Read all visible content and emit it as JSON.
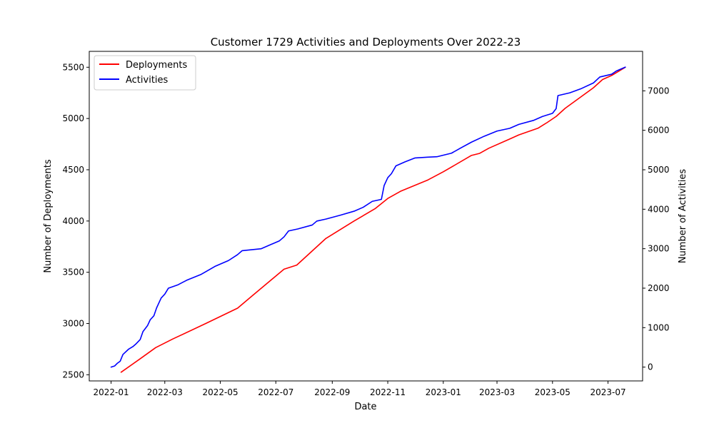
{
  "chart_data": {
    "type": "line",
    "title": "Customer 1729 Activities and Deployments Over 2022-23",
    "xlabel": "Date",
    "ylabel": "Number of Deployments",
    "y2label": "Number of Activities",
    "xlim": [
      "2021-12-08",
      "2023-08-08"
    ],
    "ylim": [
      2440,
      5655
    ],
    "y2lim": [
      -350,
      8000
    ],
    "x_ticks": [
      {
        "date": "2022-01-01",
        "label": "2022-01"
      },
      {
        "date": "2022-03-01",
        "label": "2022-03"
      },
      {
        "date": "2022-05-01",
        "label": "2022-05"
      },
      {
        "date": "2022-07-01",
        "label": "2022-07"
      },
      {
        "date": "2022-09-01",
        "label": "2022-09"
      },
      {
        "date": "2022-11-01",
        "label": "2022-11"
      },
      {
        "date": "2023-01-01",
        "label": "2023-01"
      },
      {
        "date": "2023-03-01",
        "label": "2023-03"
      },
      {
        "date": "2023-05-01",
        "label": "2023-05"
      },
      {
        "date": "2023-07-01",
        "label": "2023-07"
      }
    ],
    "y_ticks": [
      2500,
      3000,
      3500,
      4000,
      4500,
      5000,
      5500
    ],
    "y2_ticks": [
      0,
      1000,
      2000,
      3000,
      4000,
      5000,
      6000,
      7000
    ],
    "grid": false,
    "legend_position": "top-left",
    "series": [
      {
        "name": "Deployments",
        "axis": "left",
        "color": "#ff0000",
        "points": [
          [
            "2022-01-12",
            2525
          ],
          [
            "2022-02-01",
            2650
          ],
          [
            "2022-02-19",
            2765
          ],
          [
            "2022-03-10",
            2850
          ],
          [
            "2022-04-15",
            3000
          ],
          [
            "2022-05-20",
            3150
          ],
          [
            "2022-06-05",
            3270
          ],
          [
            "2022-07-10",
            3530
          ],
          [
            "2022-07-24",
            3570
          ],
          [
            "2022-08-25",
            3830
          ],
          [
            "2022-09-25",
            4000
          ],
          [
            "2022-10-18",
            4120
          ],
          [
            "2022-11-01",
            4220
          ],
          [
            "2022-11-15",
            4290
          ],
          [
            "2022-12-15",
            4400
          ],
          [
            "2023-01-01",
            4480
          ],
          [
            "2023-02-01",
            4640
          ],
          [
            "2023-02-10",
            4660
          ],
          [
            "2023-02-20",
            4710
          ],
          [
            "2023-03-15",
            4800
          ],
          [
            "2023-03-25",
            4840
          ],
          [
            "2023-04-15",
            4905
          ],
          [
            "2023-04-25",
            4960
          ],
          [
            "2023-05-05",
            5020
          ],
          [
            "2023-05-15",
            5100
          ],
          [
            "2023-06-15",
            5300
          ],
          [
            "2023-06-25",
            5380
          ],
          [
            "2023-07-05",
            5420
          ],
          [
            "2023-07-20",
            5500
          ]
        ]
      },
      {
        "name": "Activities",
        "axis": "right",
        "color": "#0000ff",
        "points": [
          [
            "2022-01-01",
            0
          ],
          [
            "2022-01-05",
            30
          ],
          [
            "2022-01-08",
            100
          ],
          [
            "2022-01-11",
            150
          ],
          [
            "2022-01-14",
            320
          ],
          [
            "2022-01-20",
            450
          ],
          [
            "2022-01-25",
            520
          ],
          [
            "2022-01-28",
            580
          ],
          [
            "2022-02-02",
            700
          ],
          [
            "2022-02-05",
            900
          ],
          [
            "2022-02-10",
            1050
          ],
          [
            "2022-02-13",
            1200
          ],
          [
            "2022-02-17",
            1300
          ],
          [
            "2022-02-20",
            1500
          ],
          [
            "2022-02-25",
            1750
          ],
          [
            "2022-03-01",
            1850
          ],
          [
            "2022-03-05",
            2000
          ],
          [
            "2022-03-15",
            2080
          ],
          [
            "2022-03-25",
            2200
          ],
          [
            "2022-04-10",
            2350
          ],
          [
            "2022-04-25",
            2550
          ],
          [
            "2022-05-10",
            2700
          ],
          [
            "2022-05-20",
            2850
          ],
          [
            "2022-05-25",
            2950
          ],
          [
            "2022-06-15",
            3000
          ],
          [
            "2022-06-30",
            3150
          ],
          [
            "2022-07-05",
            3200
          ],
          [
            "2022-07-10",
            3300
          ],
          [
            "2022-07-15",
            3450
          ],
          [
            "2022-07-25",
            3500
          ],
          [
            "2022-08-10",
            3600
          ],
          [
            "2022-08-15",
            3700
          ],
          [
            "2022-08-25",
            3750
          ],
          [
            "2022-09-10",
            3850
          ],
          [
            "2022-09-25",
            3950
          ],
          [
            "2022-10-05",
            4050
          ],
          [
            "2022-10-15",
            4200
          ],
          [
            "2022-10-25",
            4250
          ],
          [
            "2022-10-28",
            4600
          ],
          [
            "2022-11-01",
            4800
          ],
          [
            "2022-11-05",
            4900
          ],
          [
            "2022-11-10",
            5100
          ],
          [
            "2022-11-20",
            5200
          ],
          [
            "2022-12-01",
            5300
          ],
          [
            "2022-12-15",
            5320
          ],
          [
            "2022-12-25",
            5330
          ],
          [
            "2023-01-10",
            5420
          ],
          [
            "2023-01-20",
            5550
          ],
          [
            "2023-02-01",
            5700
          ],
          [
            "2023-02-15",
            5850
          ],
          [
            "2023-03-01",
            5980
          ],
          [
            "2023-03-15",
            6050
          ],
          [
            "2023-03-25",
            6150
          ],
          [
            "2023-04-10",
            6250
          ],
          [
            "2023-04-20",
            6350
          ],
          [
            "2023-05-01",
            6430
          ],
          [
            "2023-05-05",
            6550
          ],
          [
            "2023-05-07",
            6880
          ],
          [
            "2023-05-20",
            6950
          ],
          [
            "2023-06-01",
            7050
          ],
          [
            "2023-06-15",
            7200
          ],
          [
            "2023-06-22",
            7350
          ],
          [
            "2023-07-05",
            7420
          ],
          [
            "2023-07-10",
            7500
          ],
          [
            "2023-07-20",
            7600
          ]
        ]
      }
    ]
  }
}
